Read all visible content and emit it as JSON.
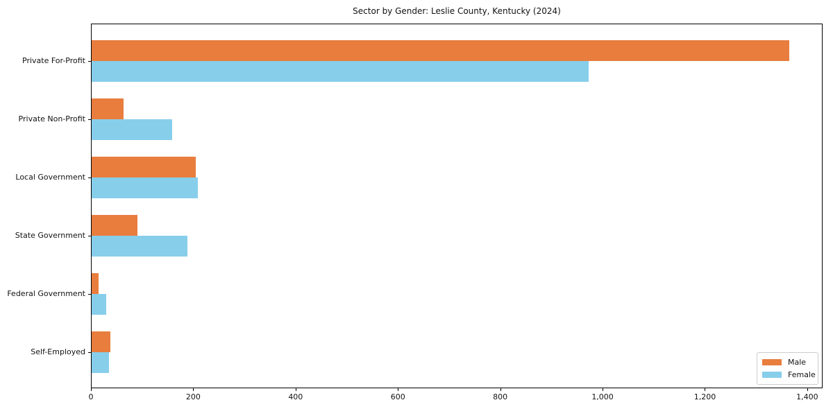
{
  "chart_data": {
    "type": "bar",
    "orientation": "horizontal",
    "title": "Sector by Gender: Leslie County, Kentucky (2024)",
    "categories": [
      "Private For-Profit",
      "Private Non-Profit",
      "Local Government",
      "State Government",
      "Federal Government",
      "Self-Employed"
    ],
    "series": [
      {
        "name": "Male",
        "color": "#e87d3e",
        "values": [
          1363,
          62,
          204,
          89,
          13,
          37
        ]
      },
      {
        "name": "Female",
        "color": "#87ceeb",
        "values": [
          971,
          158,
          207,
          187,
          28,
          34
        ]
      }
    ],
    "xlabel": "",
    "ylabel": "",
    "xlim": [
      0,
      1430
    ],
    "xticks": [
      0,
      200,
      400,
      600,
      800,
      1000,
      1200,
      1400
    ],
    "xtick_labels": [
      "0",
      "200",
      "400",
      "600",
      "800",
      "1,000",
      "1,200",
      "1,400"
    ],
    "grid": false,
    "background": "#ffffff",
    "legend": {
      "position": "lower right",
      "entries": [
        "Male",
        "Female"
      ]
    }
  }
}
